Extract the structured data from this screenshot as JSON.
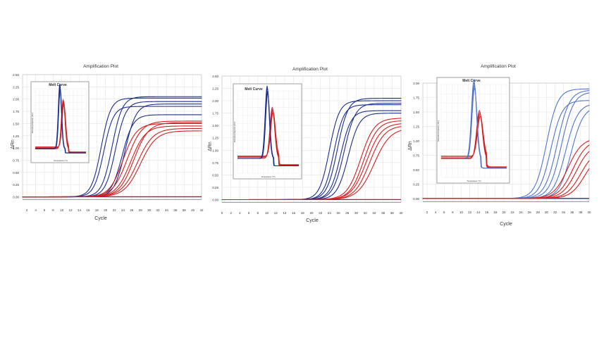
{
  "colors": {
    "blue": "#1a2e8c",
    "light_blue": "#4f76c8",
    "red": "#d22020",
    "dark_red": "#b01818"
  },
  "chart_data": [
    {
      "type": "line",
      "title": "Amplification Plot",
      "xlabel": "Cycle",
      "ylabel": "ΔRn",
      "xlim": [
        1,
        42
      ],
      "ylim": [
        -0.05,
        2.5
      ],
      "x_ticks": [
        2,
        4,
        6,
        8,
        10,
        12,
        14,
        16,
        18,
        20,
        22,
        24,
        26,
        28,
        30,
        32,
        34,
        36,
        38,
        40,
        42
      ],
      "y_ticks": [
        0.0,
        0.25,
        0.5,
        0.75,
        1.0,
        1.25,
        1.5,
        1.75,
        2.0,
        2.25,
        2.5
      ],
      "y_decimals": 2,
      "series": [
        {
          "group": "blue",
          "mid": 19.0,
          "slope": 0.9,
          "plateau": 2.02
        },
        {
          "group": "blue",
          "mid": 19.6,
          "slope": 0.9,
          "plateau": 1.85
        },
        {
          "group": "blue",
          "mid": 21.5,
          "slope": 0.85,
          "plateau": 2.05
        },
        {
          "group": "blue",
          "mid": 22.3,
          "slope": 0.85,
          "plateau": 1.95
        },
        {
          "group": "blue",
          "mid": 23.8,
          "slope": 0.8,
          "plateau": 1.68
        },
        {
          "group": "blue",
          "mid": 24.5,
          "slope": 0.8,
          "plateau": 1.9
        },
        {
          "group": "red",
          "mid": 24.0,
          "slope": 0.65,
          "plateau": 1.5
        },
        {
          "group": "red",
          "mid": 25.0,
          "slope": 0.6,
          "plateau": 1.55
        },
        {
          "group": "red",
          "mid": 25.8,
          "slope": 0.6,
          "plateau": 1.45
        },
        {
          "group": "red",
          "mid": 26.5,
          "slope": 0.6,
          "plateau": 1.52
        },
        {
          "group": "red",
          "mid": 27.3,
          "slope": 0.55,
          "plateau": 1.4
        },
        {
          "group": "red",
          "mid": 28.0,
          "slope": 0.55,
          "plateau": 1.35
        }
      ],
      "inset": {
        "title": "Melt Curve",
        "xlabel": "Temperature (°C)",
        "ylabel": "Derivative Reporter (-Rn')",
        "blue_peak": 79.5,
        "red_peak": 81.5,
        "blue_height": 0.95,
        "red_height": 0.72,
        "width": 1.3,
        "base": 0.12
      }
    },
    {
      "type": "line",
      "title": "Amplification Plot",
      "xlabel": "Cycle",
      "ylabel": "ΔRn",
      "xlim": [
        0,
        40
      ],
      "ylim": [
        -0.05,
        2.5
      ],
      "x_ticks": [
        0,
        2,
        4,
        6,
        8,
        10,
        12,
        14,
        16,
        18,
        20,
        22,
        24,
        26,
        28,
        30,
        32,
        34,
        36,
        38,
        40
      ],
      "y_ticks": [
        0.0,
        0.25,
        0.5,
        0.75,
        1.0,
        1.25,
        1.5,
        1.75,
        2.0,
        2.25,
        2.5
      ],
      "y_decimals": 2,
      "series": [
        {
          "group": "blue",
          "mid": 24.0,
          "slope": 0.9,
          "plateau": 2.0
        },
        {
          "group": "blue",
          "mid": 25.0,
          "slope": 0.9,
          "plateau": 1.92
        },
        {
          "group": "blue",
          "mid": 25.8,
          "slope": 0.85,
          "plateau": 2.05
        },
        {
          "group": "blue",
          "mid": 26.5,
          "slope": 0.85,
          "plateau": 1.8
        },
        {
          "group": "blue",
          "mid": 27.3,
          "slope": 0.8,
          "plateau": 1.95
        },
        {
          "group": "blue",
          "mid": 28.2,
          "slope": 0.8,
          "plateau": 1.75
        },
        {
          "group": "red",
          "mid": 31.0,
          "slope": 0.65,
          "plateau": 1.65
        },
        {
          "group": "red",
          "mid": 31.7,
          "slope": 0.65,
          "plateau": 1.6
        },
        {
          "group": "red",
          "mid": 32.3,
          "slope": 0.6,
          "plateau": 1.55
        },
        {
          "group": "red",
          "mid": 33.0,
          "slope": 0.6,
          "plateau": 1.5
        },
        {
          "group": "red",
          "mid": 34.0,
          "slope": 0.55,
          "plateau": 1.45
        }
      ],
      "inset": {
        "title": "Melt Curve",
        "xlabel": "Temperature (°C)",
        "ylabel": "Derivative Reporter (-Rn')",
        "blue_peak": 79.5,
        "red_peak": 82.0,
        "blue_height": 0.88,
        "red_height": 0.62,
        "width": 1.4,
        "base": 0.18
      }
    },
    {
      "type": "line",
      "title": "Amplification Plot",
      "xlabel": "Cycle",
      "ylabel": "ΔRn",
      "xlim": [
        1,
        40
      ],
      "ylim": [
        -0.05,
        2.0
      ],
      "x_ticks": [
        2,
        4,
        6,
        8,
        10,
        12,
        14,
        16,
        18,
        20,
        22,
        24,
        26,
        28,
        30,
        32,
        34,
        36,
        38,
        40
      ],
      "y_ticks": [
        0.0,
        0.25,
        0.5,
        0.75,
        1.0,
        1.25,
        1.5,
        1.75,
        2.0
      ],
      "y_decimals": 2,
      "series": [
        {
          "group": "blue",
          "mid": 30.0,
          "slope": 0.75,
          "plateau": 1.9
        },
        {
          "group": "blue",
          "mid": 31.0,
          "slope": 0.75,
          "plateau": 1.7
        },
        {
          "group": "blue",
          "mid": 32.5,
          "slope": 0.7,
          "plateau": 1.88
        },
        {
          "group": "blue",
          "mid": 33.5,
          "slope": 0.7,
          "plateau": 1.85
        },
        {
          "group": "blue",
          "mid": 34.5,
          "slope": 0.7,
          "plateau": 1.65
        },
        {
          "group": "blue",
          "mid": 35.8,
          "slope": 0.7,
          "plateau": 1.6
        },
        {
          "group": "red",
          "mid": 35.0,
          "slope": 0.6,
          "plateau": 1.05
        },
        {
          "group": "red",
          "mid": 36.2,
          "slope": 0.6,
          "plateau": 1.02
        },
        {
          "group": "red",
          "mid": 37.0,
          "slope": 0.6,
          "plateau": 0.95
        },
        {
          "group": "red",
          "mid": 38.0,
          "slope": 0.6,
          "plateau": 0.85
        },
        {
          "group": "red",
          "mid": 39.0,
          "slope": 0.6,
          "plateau": 0.8
        }
      ],
      "inset": {
        "title": "Melt Curve",
        "xlabel": "Temperature (°C)",
        "ylabel": "Derivative Reporter (-Rn')",
        "blue_peak": 80.0,
        "red_peak": 82.5,
        "blue_height": 0.85,
        "red_height": 0.52,
        "width": 1.6,
        "base": 0.2
      }
    }
  ]
}
